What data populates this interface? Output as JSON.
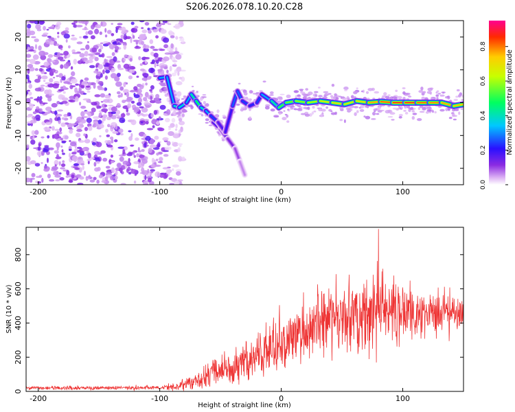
{
  "title": "S206.2026.078.10.20.C28",
  "colors": {
    "snr_line": "#ee3333",
    "frame": "#000000"
  },
  "chart_data": [
    {
      "type": "heatmap",
      "name": "spectrogram",
      "xlabel": "Height of straight line (km)",
      "ylabel": "Frequency (Hz)",
      "xlim": [
        -210,
        150
      ],
      "ylim": [
        -25,
        25
      ],
      "xticks": [
        -200,
        -100,
        0,
        100
      ],
      "xtick_labels": [
        "-200",
        "-100",
        "0",
        "100"
      ],
      "yticks": [
        -20,
        -10,
        0,
        10,
        20
      ],
      "ytick_labels": [
        "-20",
        "-10",
        "0",
        "10",
        "20"
      ],
      "noise_region_x": [
        -210,
        -88
      ],
      "signal_track": [
        {
          "x": -100,
          "f": 7.5,
          "amp": 0.35
        },
        {
          "x": -94,
          "f": 7.8,
          "amp": 0.3
        },
        {
          "x": -88,
          "f": -1,
          "amp": 0.35
        },
        {
          "x": -84,
          "f": -1.5,
          "amp": 0.45
        },
        {
          "x": -78,
          "f": 0,
          "amp": 0.3
        },
        {
          "x": -74,
          "f": 2.5,
          "amp": 0.35
        },
        {
          "x": -70,
          "f": 0.5,
          "amp": 0.5
        },
        {
          "x": -66,
          "f": -1.5,
          "amp": 0.45
        },
        {
          "x": -62,
          "f": -2.5,
          "amp": 0.35
        },
        {
          "x": -58,
          "f": -4,
          "amp": 0.3
        },
        {
          "x": -52,
          "f": -6,
          "amp": 0.2
        },
        {
          "x": -46,
          "f": -9,
          "amp": 0.15
        },
        {
          "x": -40,
          "f": -1,
          "amp": 0.25
        },
        {
          "x": -36,
          "f": 3.5,
          "amp": 0.3
        },
        {
          "x": -32,
          "f": 0.5,
          "amp": 0.25
        },
        {
          "x": -26,
          "f": -1,
          "amp": 0.25
        },
        {
          "x": -20,
          "f": 0,
          "amp": 0.2
        },
        {
          "x": -16,
          "f": 2.5,
          "amp": 0.3
        },
        {
          "x": -8,
          "f": 0.5,
          "amp": 0.35
        },
        {
          "x": -2,
          "f": -1.5,
          "amp": 0.5
        },
        {
          "x": 4,
          "f": 0,
          "amp": 0.55
        },
        {
          "x": 12,
          "f": 0.5,
          "amp": 0.6
        },
        {
          "x": 22,
          "f": 0,
          "amp": 0.6
        },
        {
          "x": 32,
          "f": 0.5,
          "amp": 0.65
        },
        {
          "x": 42,
          "f": 0,
          "amp": 0.7
        },
        {
          "x": 52,
          "f": -0.5,
          "amp": 0.7
        },
        {
          "x": 62,
          "f": 0.5,
          "amp": 0.65
        },
        {
          "x": 72,
          "f": 0,
          "amp": 0.75
        },
        {
          "x": 82,
          "f": 0.3,
          "amp": 0.8
        },
        {
          "x": 92,
          "f": 0,
          "amp": 0.85
        },
        {
          "x": 102,
          "f": 0,
          "amp": 0.9
        },
        {
          "x": 112,
          "f": 0,
          "amp": 0.85
        },
        {
          "x": 122,
          "f": 0,
          "amp": 0.8
        },
        {
          "x": 132,
          "f": 0,
          "amp": 0.8
        },
        {
          "x": 142,
          "f": -1,
          "amp": 0.75
        },
        {
          "x": 150,
          "f": -0.5,
          "amp": 0.75
        }
      ],
      "trailing_branch": [
        {
          "x": -56,
          "f": -6,
          "amp": 0.2
        },
        {
          "x": -50,
          "f": -8,
          "amp": 0.18
        },
        {
          "x": -44,
          "f": -11,
          "amp": 0.15
        },
        {
          "x": -38,
          "f": -14,
          "amp": 0.12
        },
        {
          "x": -34,
          "f": -18,
          "amp": 0.08
        },
        {
          "x": -30,
          "f": -22,
          "amp": 0.05
        }
      ],
      "colorbar": {
        "label": "Normalized spectral amplitude",
        "range": [
          0,
          0.95
        ],
        "ticks": [
          0,
          0.2,
          0.4,
          0.6,
          0.8
        ],
        "tick_labels": [
          "0.0",
          "0.2",
          "0.4",
          "0.6",
          "0.8"
        ]
      }
    },
    {
      "type": "line",
      "name": "snr",
      "xlabel": "Height of straight line (km)",
      "ylabel": "SNR (10 * v/v)",
      "xlim": [
        -210,
        150
      ],
      "ylim": [
        0,
        960
      ],
      "xticks": [
        -200,
        -100,
        0,
        100
      ],
      "xtick_labels": [
        "-200",
        "-100",
        "0",
        "100"
      ],
      "yticks": [
        0,
        200,
        400,
        600,
        800
      ],
      "ytick_labels": [
        "0",
        "200",
        "400",
        "600",
        "800"
      ],
      "envelope_x": [
        -210,
        -150,
        -100,
        -85,
        -70,
        -60,
        -50,
        -40,
        -30,
        -20,
        -10,
        0,
        10,
        20,
        30,
        40,
        50,
        60,
        70,
        80,
        90,
        100,
        110,
        120,
        130,
        140,
        150
      ],
      "envelope_mean": [
        20,
        20,
        22,
        30,
        60,
        100,
        120,
        140,
        170,
        220,
        250,
        280,
        320,
        360,
        390,
        420,
        440,
        450,
        450,
        460,
        460,
        460,
        460,
        460,
        460,
        460,
        470
      ],
      "envelope_spread": [
        10,
        10,
        12,
        20,
        45,
        70,
        80,
        90,
        110,
        130,
        140,
        150,
        160,
        170,
        180,
        190,
        200,
        200,
        200,
        200,
        180,
        160,
        150,
        140,
        130,
        120,
        110
      ],
      "peak_x": 80,
      "peak_value": 950
    }
  ]
}
